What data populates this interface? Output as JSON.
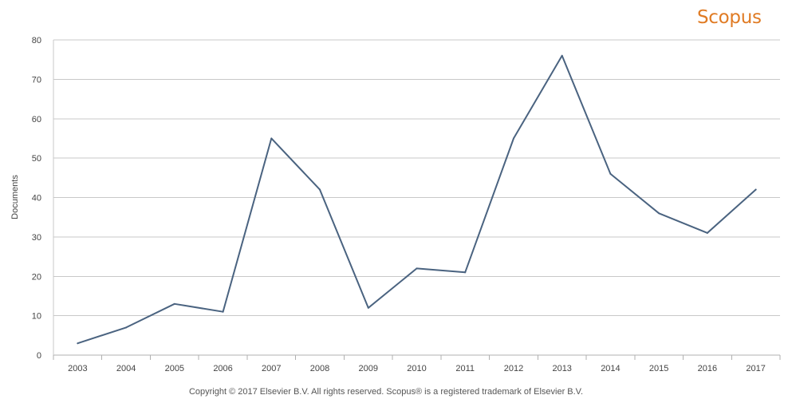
{
  "logo": "Scopus",
  "copyright": "Copyright © 2017 Elsevier B.V. All rights reserved. Scopus® is a registered trademark of Elsevier B.V.",
  "chart_data": {
    "type": "line",
    "title": "",
    "xlabel": "",
    "ylabel": "Documents",
    "categories": [
      "2003",
      "2004",
      "2005",
      "2006",
      "2007",
      "2008",
      "2009",
      "2010",
      "2011",
      "2012",
      "2013",
      "2014",
      "2015",
      "2016",
      "2017"
    ],
    "series": [
      {
        "values": [
          3,
          7,
          13,
          11,
          55,
          42,
          12,
          22,
          21,
          55,
          76,
          46,
          36,
          31,
          42
        ]
      }
    ],
    "ylim": [
      0,
      80
    ],
    "yticks": [
      0,
      10,
      20,
      30,
      40,
      50,
      60,
      70,
      80
    ],
    "grid": true,
    "line_color": "#4a6380",
    "grid_color": "#c8c8c8"
  }
}
